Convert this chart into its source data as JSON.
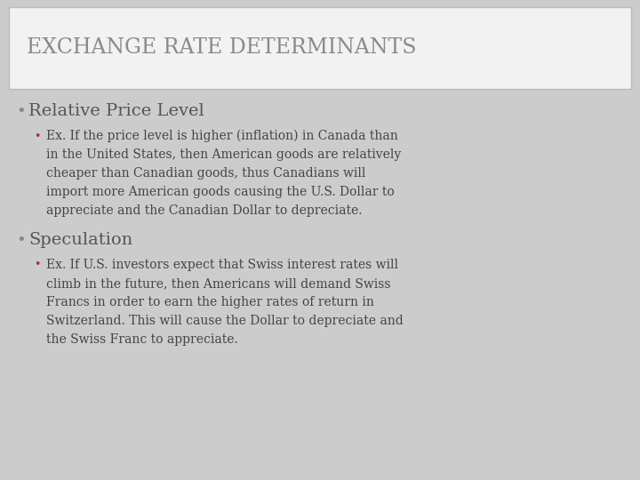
{
  "title": "EXCHANGE RATE DETERMINANTS",
  "title_color": "#8a8a8a",
  "title_fontsize": 17,
  "background_color": "#cccccc",
  "title_box_color": "#f2f2f2",
  "title_box_border": "#bbbbbb",
  "bullet1_text": "Relative Price Level",
  "bullet1_color": "#555555",
  "bullet1_fontsize": 14,
  "bullet1_dot_color": "#888888",
  "sub_bullet_dot_color": "#aa3333",
  "sub_bullet_color": "#444444",
  "sub_bullet_fontsize": 10,
  "sub_bullet1_lines": [
    "Ex. If the price level is higher (inflation) in Canada than",
    "in the United States, then American goods are relatively",
    "cheaper than Canadian goods, thus Canadians will",
    "import more American goods causing the U.S. Dollar to",
    "appreciate and the Canadian Dollar to depreciate."
  ],
  "bullet2_text": "Speculation",
  "bullet2_color": "#555555",
  "bullet2_fontsize": 14,
  "bullet2_dot_color": "#888888",
  "sub_bullet2_lines": [
    "Ex. If U.S. investors expect that Swiss interest rates will",
    "climb in the future, then Americans will demand Swiss",
    "Francs in order to earn the higher rates of return in",
    "Switzerland. This will cause the Dollar to depreciate and",
    "the Swiss Franc to appreciate."
  ]
}
